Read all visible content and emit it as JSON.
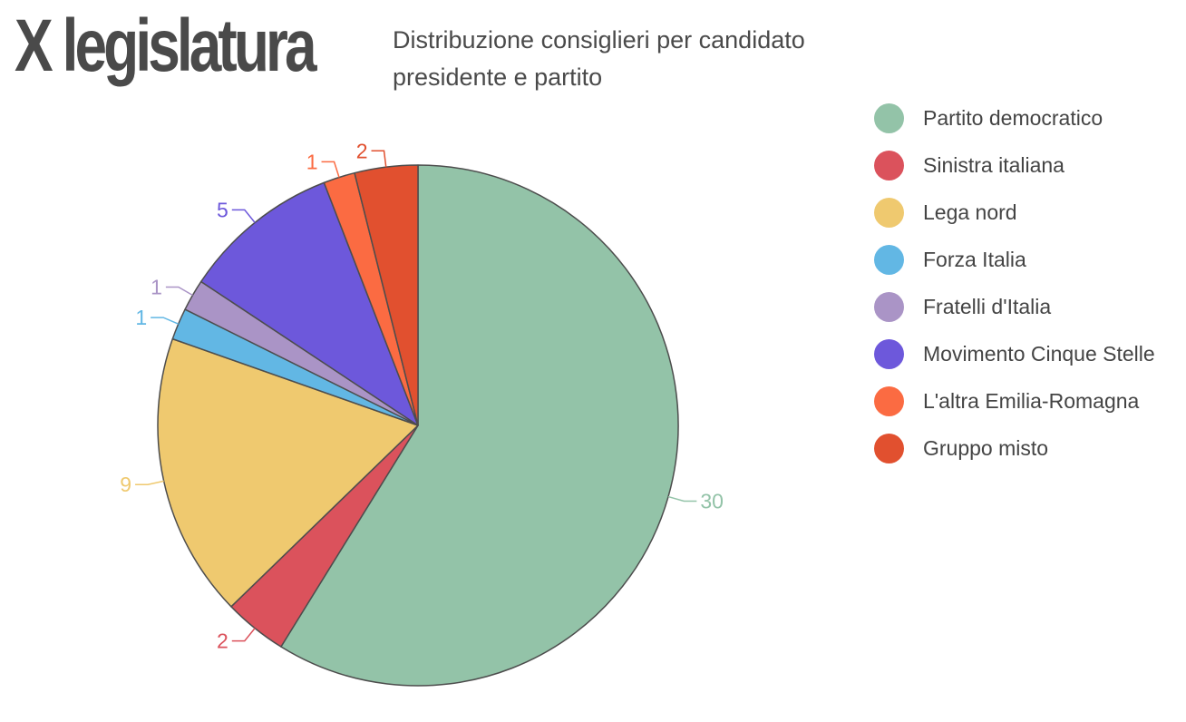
{
  "header": {
    "title": "X legislatura",
    "subtitle": "Distribuzione consiglieri per candidato presidente e partito"
  },
  "chart_data": {
    "type": "pie",
    "title": "X legislatura",
    "subtitle": "Distribuzione consiglieri per candidato presidente e partito",
    "categories": [
      "Partito democratico",
      "Sinistra italiana",
      "Lega nord",
      "Forza Italia",
      "Fratelli d'Italia",
      "Movimento Cinque Stelle",
      "L'altra Emilia-Romagna",
      "Gruppo misto"
    ],
    "values": [
      30,
      2,
      9,
      1,
      1,
      5,
      1,
      2
    ],
    "colors": [
      "#93c3a8",
      "#db525c",
      "#efc96f",
      "#62b7e4",
      "#aa94c6",
      "#6d58db",
      "#fb6b42",
      "#e1502f"
    ],
    "start_angle_deg": 0,
    "direction": "clockwise",
    "legend_position": "right",
    "data_labels": "outside"
  }
}
